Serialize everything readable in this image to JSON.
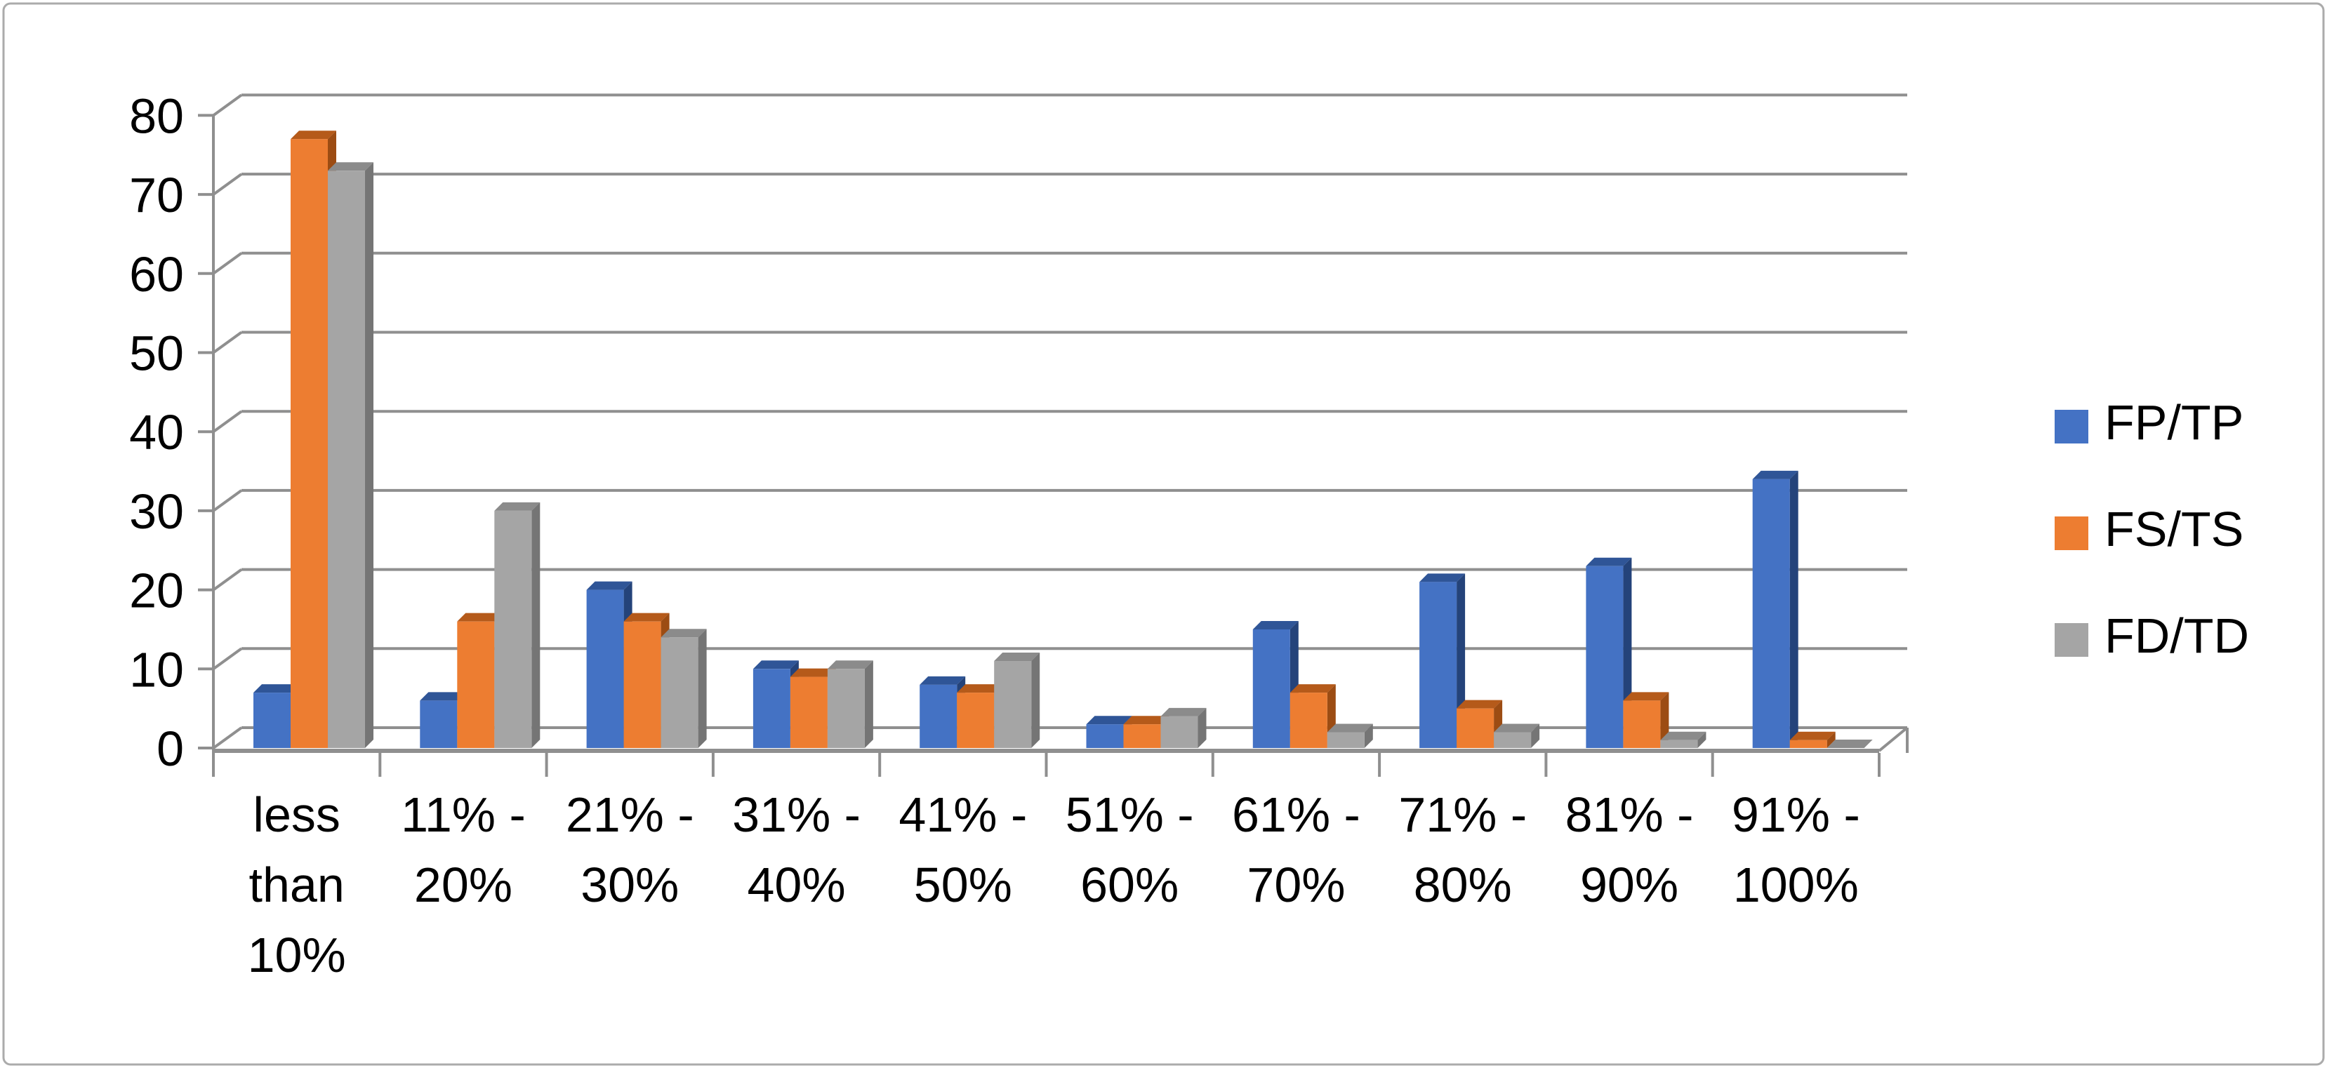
{
  "frame": {
    "background": "#ffffff",
    "border_color": "#ababab"
  },
  "chart_data": {
    "type": "bar",
    "style": "3d-clustered-column",
    "title": "",
    "xlabel": "",
    "ylabel": "",
    "categories": [
      "less than 10%",
      "11% - 20%",
      "21% - 30%",
      "31% - 40%",
      "41% - 50%",
      "51% - 60%",
      "61% - 70%",
      "71% - 80%",
      "81% - 90%",
      "91% - 100%"
    ],
    "category_label_lines": [
      [
        "less",
        "than",
        "10%"
      ],
      [
        "11% -",
        "20%"
      ],
      [
        "21% -",
        "30%"
      ],
      [
        "31% -",
        "40%"
      ],
      [
        "41% -",
        "50%"
      ],
      [
        "51% -",
        "60%"
      ],
      [
        "61% -",
        "70%"
      ],
      [
        "71% -",
        "80%"
      ],
      [
        "81% -",
        "90%"
      ],
      [
        "91% -",
        "100%"
      ]
    ],
    "series": [
      {
        "name": "FP/TP",
        "color": "#4472C4",
        "color_top": "#2f5597",
        "color_side": "#24437a",
        "values": [
          7,
          6,
          20,
          10,
          8,
          3,
          15,
          21,
          23,
          34
        ]
      },
      {
        "name": "FS/TS",
        "color": "#ED7D31",
        "color_top": "#b55a1a",
        "color_side": "#9c4c13",
        "values": [
          77,
          16,
          16,
          9,
          7,
          3,
          7,
          5,
          6,
          1
        ]
      },
      {
        "name": "FD/TD",
        "color": "#A5A5A5",
        "color_top": "#8b8b8b",
        "color_side": "#757575",
        "values": [
          73,
          30,
          14,
          10,
          11,
          4,
          2,
          2,
          1,
          0
        ]
      }
    ],
    "ylim": [
      0,
      80
    ],
    "yticks": [
      0,
      10,
      20,
      30,
      40,
      50,
      60,
      70,
      80
    ],
    "grid": true,
    "gridline_color": "#8f8f8f",
    "axis_color": "#8f8f8f",
    "text_color": "#000000",
    "legend_position": "right"
  }
}
